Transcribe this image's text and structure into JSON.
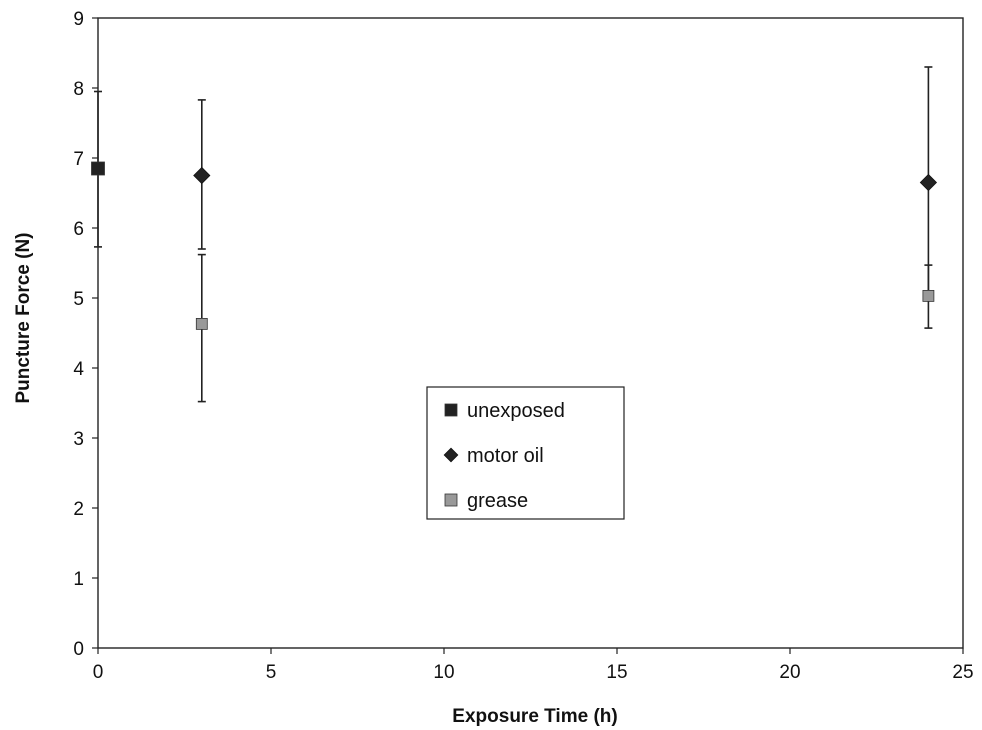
{
  "chart_data": {
    "type": "scatter",
    "title": "",
    "xlabel": "Exposure Time (h)",
    "ylabel": "Puncture Force (N)",
    "xlim": [
      0,
      25
    ],
    "ylim": [
      0,
      9
    ],
    "x_ticks": [
      0,
      5,
      10,
      15,
      20,
      25
    ],
    "y_ticks": [
      0,
      1,
      2,
      3,
      4,
      5,
      6,
      7,
      8,
      9
    ],
    "x_tick_labels": [
      "0",
      "5",
      "10",
      "15",
      "20",
      "25"
    ],
    "y_tick_labels": [
      "0",
      "1",
      "2",
      "3",
      "4",
      "5",
      "6",
      "7",
      "8",
      "9"
    ],
    "grid": false,
    "legend_position": "center",
    "error_bars": true,
    "series": [
      {
        "name": "unexposed",
        "marker": "square",
        "color": "#222222",
        "points": [
          {
            "x": 0,
            "y": 6.85,
            "err_low": 5.73,
            "err_high": 7.95
          }
        ]
      },
      {
        "name": "motor oil",
        "marker": "diamond",
        "color": "#222222",
        "points": [
          {
            "x": 3,
            "y": 6.75,
            "err_low": 5.7,
            "err_high": 7.83
          },
          {
            "x": 24,
            "y": 6.65,
            "err_low": 5.0,
            "err_high": 8.3
          }
        ]
      },
      {
        "name": "grease",
        "marker": "square",
        "color": "#999999",
        "points": [
          {
            "x": 3,
            "y": 4.63,
            "err_low": 3.52,
            "err_high": 5.62
          },
          {
            "x": 24,
            "y": 5.03,
            "err_low": 4.57,
            "err_high": 5.47
          }
        ]
      }
    ]
  }
}
